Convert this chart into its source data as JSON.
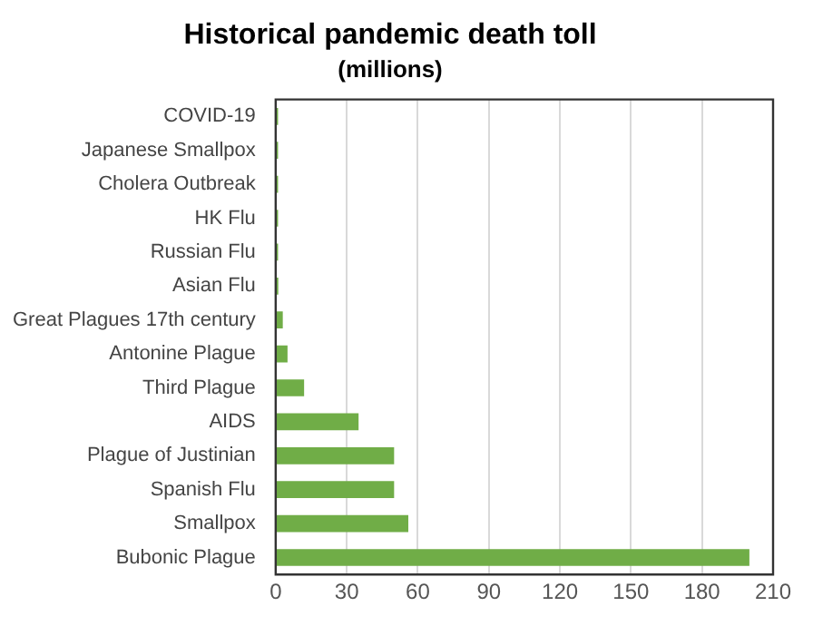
{
  "chart_data": {
    "type": "bar",
    "orientation": "horizontal",
    "title": "Historical pandemic death toll",
    "subtitle": "(millions)",
    "categories": [
      "COVID-19",
      "Japanese Smallpox",
      "Cholera Outbreak",
      "HK Flu",
      "Russian Flu",
      "Asian Flu",
      "Great Plagues 17th century",
      "Antonine Plague",
      "Third Plague",
      "AIDS",
      "Plague of Justinian",
      "Spanish Flu",
      "Smallpox",
      "Bubonic Plague"
    ],
    "values": [
      1,
      1,
      1,
      1,
      1,
      1.1,
      3,
      5,
      12,
      35,
      50,
      50,
      56,
      200
    ],
    "color": "#70ad47",
    "xlim": [
      0,
      210
    ],
    "xticks": [
      0,
      30,
      60,
      90,
      120,
      150,
      180,
      210
    ],
    "grid": "x",
    "legend": false
  }
}
